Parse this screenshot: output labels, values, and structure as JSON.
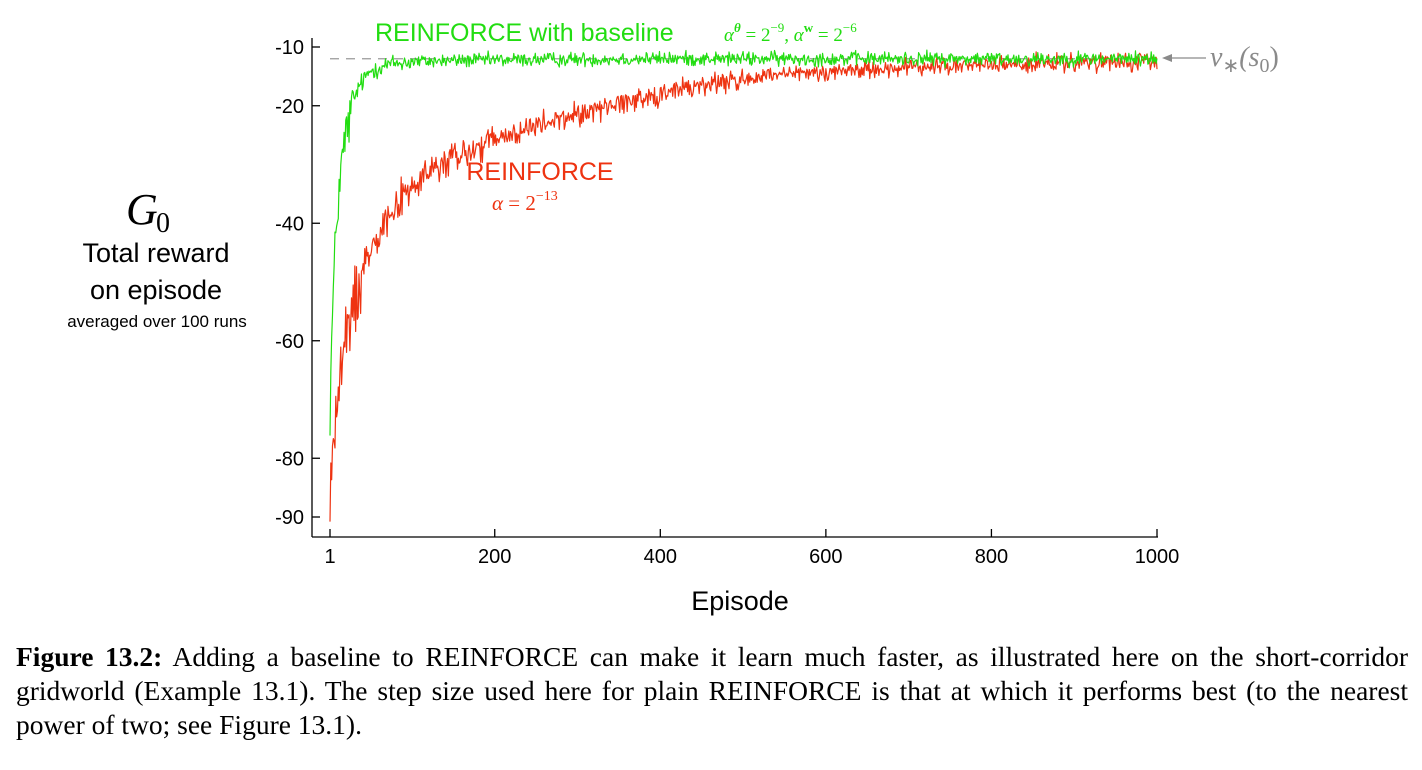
{
  "chart_data": {
    "type": "line",
    "title": "",
    "xlabel": "Episode",
    "ylabel": {
      "symbol": "G",
      "symbol_subscript": "0",
      "line1": "Total reward",
      "line2": "on episode",
      "line3": "averaged over 100 runs"
    },
    "xlim": [
      1,
      1000
    ],
    "ylim": [
      -92,
      -8
    ],
    "x_ticks": [
      1,
      200,
      400,
      600,
      800,
      1000
    ],
    "x_tick_labels": [
      "1",
      "200",
      "400",
      "600",
      "800",
      "1000"
    ],
    "y_ticks": [
      -10,
      -20,
      -40,
      -60,
      -80,
      -90
    ],
    "y_tick_labels": [
      "-10",
      "-20",
      "-40",
      "-60",
      "-80",
      "-90"
    ],
    "reference_line": {
      "y": -12,
      "style": "dashed",
      "color": "#999999",
      "label_base": "v",
      "label_sub": "∗",
      "label_arg": "(s",
      "label_arg_sub": "0",
      "label_close": ")"
    },
    "series": [
      {
        "name": "REINFORCE with baseline",
        "color": "#22dd11",
        "annotation": {
          "alpha": "α",
          "theta": "θ",
          "eq1": " = 2",
          "exp1": "−9",
          "sep": ", ",
          "w": "w",
          "eq2": " = 2",
          "exp2": "−6"
        },
        "x": [
          1,
          3,
          5,
          8,
          12,
          16,
          20,
          25,
          30,
          35,
          40,
          50,
          60,
          70,
          80,
          100,
          150,
          200,
          300,
          400,
          500,
          600,
          700,
          800,
          900,
          1000
        ],
        "y": [
          -72,
          -60,
          -52,
          -42,
          -34,
          -29,
          -25,
          -22,
          -19,
          -17,
          -16,
          -14,
          -13.5,
          -13,
          -12.8,
          -12.5,
          -12.3,
          -12.2,
          -12.1,
          -12,
          -12,
          -12,
          -12,
          -12,
          -12,
          -12
        ]
      },
      {
        "name": "REINFORCE",
        "color": "#ee3311",
        "annotation": {
          "alpha": "α",
          "eq": " = 2",
          "exp": "−13"
        },
        "x": [
          1,
          3,
          6,
          10,
          15,
          20,
          30,
          40,
          50,
          60,
          80,
          100,
          125,
          150,
          200,
          250,
          300,
          350,
          400,
          450,
          500,
          550,
          600,
          650,
          700,
          800,
          900,
          1000
        ],
        "y": [
          -90,
          -80,
          -76,
          -70,
          -65,
          -60,
          -54,
          -48,
          -44,
          -41,
          -37,
          -34,
          -31,
          -29,
          -26,
          -23.5,
          -21.5,
          -19.5,
          -18,
          -16.5,
          -15.5,
          -14.8,
          -14.2,
          -13.8,
          -13.5,
          -13,
          -12.8,
          -12.6
        ]
      }
    ]
  },
  "caption": {
    "label": "Figure 13.2:",
    "text": " Adding a baseline to REINFORCE can make it learn much faster, as illustrated here on the short-corridor gridworld (Example 13.1). The step size used here for plain REINFORCE is that at which it performs best (to the nearest power of two; see Figure 13.1)."
  }
}
